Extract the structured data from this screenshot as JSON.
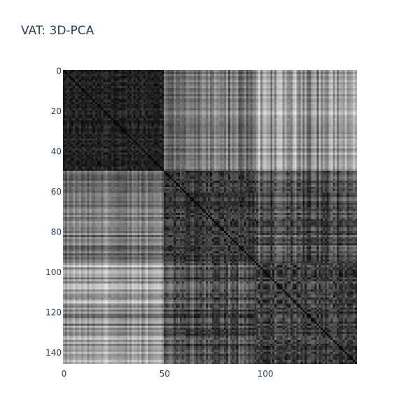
{
  "chart_data": {
    "type": "heatmap",
    "title": "VAT: 3D-PCA",
    "xlabel": "",
    "ylabel": "",
    "n": 146,
    "colorscale": "grayscale (black = low distance, white = high distance)",
    "xlim": [
      0,
      145
    ],
    "ylim": [
      145,
      0
    ],
    "x_ticks": [
      0,
      50,
      100
    ],
    "y_ticks": [
      0,
      20,
      40,
      60,
      80,
      100,
      120,
      140
    ],
    "showscale": false,
    "diagonal": "zero (black)"
  }
}
